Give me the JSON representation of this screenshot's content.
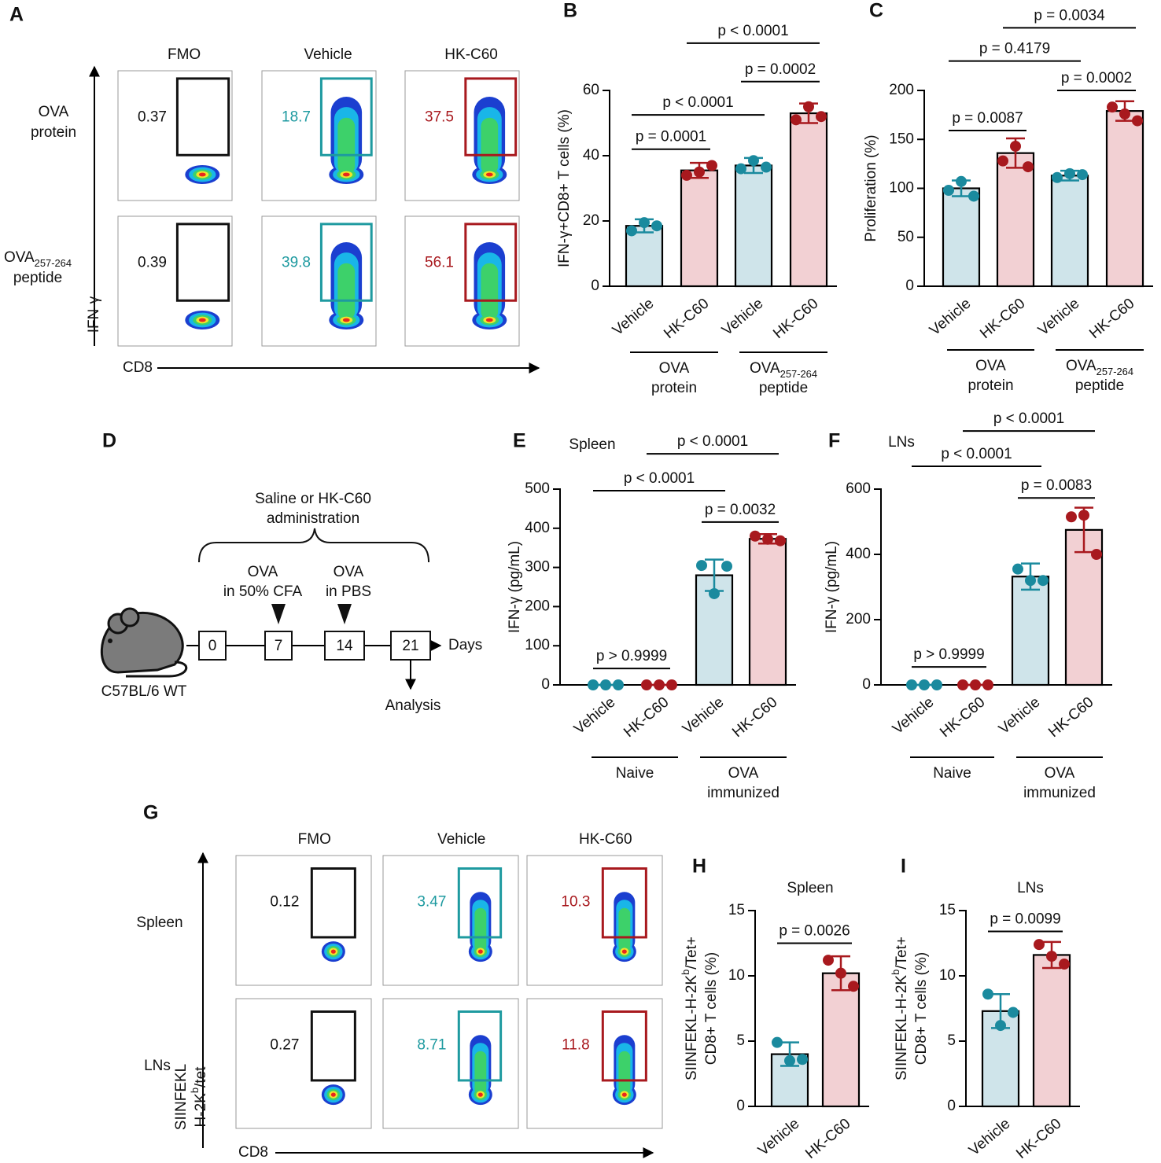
{
  "panel_letters": [
    "A",
    "B",
    "C",
    "D",
    "E",
    "F",
    "G",
    "H",
    "I"
  ],
  "flow_panels": [
    {
      "columns": [
        "FMO",
        "Vehicle",
        "HK-C60"
      ],
      "rows": [
        [
          [
            "OVA"
          ],
          [
            "protein"
          ]
        ],
        [
          [
            "OVA",
            "257-264"
          ],
          [
            "peptide"
          ]
        ]
      ],
      "gates": [
        [
          0.37,
          18.7,
          37.5
        ],
        [
          0.39,
          39.8,
          56.1
        ]
      ],
      "gate_colors": [
        "#111111",
        "#1e9aa0",
        "#a8191e"
      ],
      "y_label": [
        [
          "IFN-γ"
        ]
      ],
      "x_label": "CD8"
    },
    {
      "columns": [
        "FMO",
        "Vehicle",
        "HK-C60"
      ],
      "rows": [
        [
          [
            "Spleen"
          ]
        ],
        [
          [
            "LNs"
          ]
        ]
      ],
      "gates": [
        [
          0.12,
          3.47,
          10.3
        ],
        [
          0.27,
          8.71,
          11.8
        ]
      ],
      "gate_colors": [
        "#111111",
        "#1e9aa0",
        "#a8191e"
      ],
      "y_label": [
        [
          "SIINFEKL"
        ],
        [
          "H-2K",
          "b",
          "/tet"
        ]
      ],
      "x_label": "CD8"
    }
  ],
  "timeline": {
    "top_lines": [
      [
        "Saline or HK-C60"
      ],
      [
        "administration"
      ]
    ],
    "days": [
      0,
      7,
      14,
      21
    ],
    "events": [
      {
        "day_index": 1,
        "lines": [
          [
            "OVA"
          ],
          [
            "in 50% CFA"
          ]
        ]
      },
      {
        "day_index": 2,
        "lines": [
          [
            "OVA"
          ],
          [
            "in PBS"
          ]
        ]
      }
    ],
    "days_label": "Days",
    "end_label": "Analysis",
    "mouse_label": "C57BL/6 WT"
  },
  "chart_data": [
    {
      "type": "bar",
      "ylabel": [
        [
          "IFN-γ+CD8+ T cells (%)"
        ]
      ],
      "categories": [
        "Vehicle",
        "HK-C60",
        "Vehicle",
        "HK-C60"
      ],
      "values": [
        18.5,
        35.5,
        37,
        53
      ],
      "errors": [
        2,
        2.3,
        2.3,
        3
      ],
      "points": [
        [
          17,
          19.5,
          18.5
        ],
        [
          34,
          35,
          37
        ],
        [
          36,
          38.5,
          36.5
        ],
        [
          51,
          55,
          52
        ]
      ],
      "bar_colors": [
        "#cfe4ea",
        "#f2d0d3",
        "#cfe4ea",
        "#f2d0d3"
      ],
      "point_colors": [
        "#1a8a9e",
        "#a8191e",
        "#1a8a9e",
        "#a8191e"
      ],
      "ylim": [
        0,
        60
      ],
      "yticks": [
        0,
        20,
        40,
        60
      ],
      "groups": [
        {
          "span": [
            0,
            1
          ],
          "lines": [
            [
              "OVA"
            ],
            [
              "protein"
            ]
          ]
        },
        {
          "span": [
            2,
            3
          ],
          "lines": [
            [
              "OVA",
              "257-264"
            ],
            [
              "peptide"
            ]
          ]
        }
      ],
      "comparisons": [
        {
          "label": "p = 0.0001",
          "pair": [
            0,
            1
          ],
          "y": 42
        },
        {
          "label": "p < 0.0001",
          "pair": [
            0,
            2
          ],
          "y": 52.5
        },
        {
          "label": "p = 0.0002",
          "pair": [
            2,
            3
          ],
          "y": 62.7
        },
        {
          "label": "p < 0.0001",
          "pair": [
            1,
            3
          ],
          "y": 74.5
        }
      ]
    },
    {
      "type": "bar",
      "ylabel": [
        [
          "Proliferation (%)"
        ]
      ],
      "categories": [
        "Vehicle",
        "HK-C60",
        "Vehicle",
        "HK-C60"
      ],
      "values": [
        100,
        136,
        113,
        179
      ],
      "errors": [
        8,
        15,
        5,
        10
      ],
      "points": [
        [
          98,
          107,
          92
        ],
        [
          128,
          143,
          122
        ],
        [
          111,
          115,
          114
        ],
        [
          183,
          176,
          169
        ]
      ],
      "bar_colors": [
        "#cfe4ea",
        "#f2d0d3",
        "#cfe4ea",
        "#f2d0d3"
      ],
      "point_colors": [
        "#1a8a9e",
        "#a8191e",
        "#1a8a9e",
        "#a8191e"
      ],
      "ylim": [
        0,
        200
      ],
      "yticks": [
        0,
        50,
        100,
        150,
        200
      ],
      "groups": [
        {
          "span": [
            0,
            1
          ],
          "lines": [
            [
              "OVA"
            ],
            [
              "protein"
            ]
          ]
        },
        {
          "span": [
            2,
            3
          ],
          "lines": [
            [
              "OVA",
              "257-264"
            ],
            [
              "peptide"
            ]
          ]
        }
      ],
      "comparisons": [
        {
          "label": "p = 0.0087",
          "pair": [
            0,
            1
          ],
          "y": 159
        },
        {
          "label": "p = 0.4179",
          "pair": [
            0,
            2
          ],
          "y": 230
        },
        {
          "label": "p = 0.0002",
          "pair": [
            2,
            3
          ],
          "y": 200
        },
        {
          "label": "p = 0.0034",
          "pair": [
            1,
            3
          ],
          "y": 264
        }
      ]
    },
    {
      "type": "bar",
      "title": "Spleen",
      "ylabel": [
        [
          "IFN-γ (pg/mL)"
        ]
      ],
      "categories": [
        "Vehicle",
        "HK-C60",
        "Vehicle",
        "HK-C60"
      ],
      "values": [
        0,
        0,
        280,
        373
      ],
      "errors": [
        0,
        0,
        40,
        12
      ],
      "points": [
        [
          0,
          0,
          0
        ],
        [
          0,
          0,
          0
        ],
        [
          305,
          233,
          303
        ],
        [
          380,
          372,
          368
        ]
      ],
      "bar_colors": [
        "#cfe4ea",
        "#f2d0d3",
        "#cfe4ea",
        "#f2d0d3"
      ],
      "point_colors": [
        "#1a8a9e",
        "#a8191e",
        "#1a8a9e",
        "#a8191e"
      ],
      "ylim": [
        0,
        500
      ],
      "yticks": [
        0,
        100,
        200,
        300,
        400,
        500
      ],
      "groups": [
        {
          "span": [
            0,
            1
          ],
          "lines": [
            [
              "Naive"
            ]
          ]
        },
        {
          "span": [
            2,
            3
          ],
          "lines": [
            [
              "OVA"
            ],
            [
              "immunized"
            ]
          ]
        }
      ],
      "comparisons": [
        {
          "label": "p > 0.9999",
          "pair": [
            0,
            1
          ],
          "y": 42
        },
        {
          "label": "p < 0.0001",
          "pair": [
            0,
            2
          ],
          "y": 496
        },
        {
          "label": "p = 0.0032",
          "pair": [
            2,
            3
          ],
          "y": 416
        },
        {
          "label": "p < 0.0001",
          "pair": [
            1,
            3
          ],
          "y": 590
        }
      ]
    },
    {
      "type": "bar",
      "title": "LNs",
      "ylabel": [
        [
          "IFN-γ (pg/mL)"
        ]
      ],
      "categories": [
        "Vehicle",
        "HK-C60",
        "Vehicle",
        "HK-C60"
      ],
      "values": [
        0,
        0,
        332,
        475
      ],
      "errors": [
        0,
        0,
        40,
        68
      ],
      "points": [
        [
          0,
          0,
          0
        ],
        [
          0,
          0,
          0
        ],
        [
          355,
          320,
          320
        ],
        [
          515,
          520,
          400
        ]
      ],
      "bar_colors": [
        "#cfe4ea",
        "#f2d0d3",
        "#cfe4ea",
        "#f2d0d3"
      ],
      "point_colors": [
        "#1a8a9e",
        "#a8191e",
        "#1a8a9e",
        "#a8191e"
      ],
      "ylim": [
        0,
        600
      ],
      "yticks": [
        0,
        200,
        400,
        600
      ],
      "groups": [
        {
          "span": [
            0,
            1
          ],
          "lines": [
            [
              "Naive"
            ]
          ]
        },
        {
          "span": [
            2,
            3
          ],
          "lines": [
            [
              "OVA"
            ],
            [
              "immunized"
            ]
          ]
        }
      ],
      "comparisons": [
        {
          "label": "p > 0.9999",
          "pair": [
            0,
            1
          ],
          "y": 55
        },
        {
          "label": "p < 0.0001",
          "pair": [
            0,
            2
          ],
          "y": 670
        },
        {
          "label": "p = 0.0083",
          "pair": [
            2,
            3
          ],
          "y": 573
        },
        {
          "label": "p < 0.0001",
          "pair": [
            1,
            3
          ],
          "y": 778
        }
      ]
    },
    {
      "type": "bar",
      "title": "Spleen",
      "ylabel": [
        [
          "SIINFEKL-H-2K",
          "b",
          "/Tet+"
        ],
        [
          "CD8+ T cells (%)"
        ]
      ],
      "categories": [
        "Vehicle",
        "HK-C60"
      ],
      "values": [
        4,
        10.2
      ],
      "errors": [
        0.9,
        1.3
      ],
      "points": [
        [
          4.9,
          3.5,
          3.6
        ],
        [
          11.2,
          10.2,
          9.2
        ]
      ],
      "bar_colors": [
        "#cfe4ea",
        "#f2d0d3"
      ],
      "point_colors": [
        "#1a8a9e",
        "#a8191e"
      ],
      "ylim": [
        0,
        15
      ],
      "yticks": [
        0,
        5,
        10,
        15
      ],
      "comparisons": [
        {
          "label": "p = 0.0026",
          "pair": [
            0,
            1
          ],
          "y": 12.5
        }
      ]
    },
    {
      "type": "bar",
      "title": "LNs",
      "ylabel": [
        [
          "SIINFEKL-H-2K",
          "b",
          "/Tet+"
        ],
        [
          "CD8+ T cells (%)"
        ]
      ],
      "categories": [
        "Vehicle",
        "HK-C60"
      ],
      "values": [
        7.3,
        11.6
      ],
      "errors": [
        1.3,
        1.0
      ],
      "points": [
        [
          8.6,
          6.2,
          7.2
        ],
        [
          12.4,
          11.5,
          10.9
        ]
      ],
      "bar_colors": [
        "#cfe4ea",
        "#f2d0d3"
      ],
      "point_colors": [
        "#1a8a9e",
        "#a8191e"
      ],
      "ylim": [
        0,
        15
      ],
      "yticks": [
        0,
        5,
        10,
        15
      ],
      "comparisons": [
        {
          "label": "p = 0.0099",
          "pair": [
            0,
            1
          ],
          "y": 13.4
        }
      ]
    }
  ]
}
